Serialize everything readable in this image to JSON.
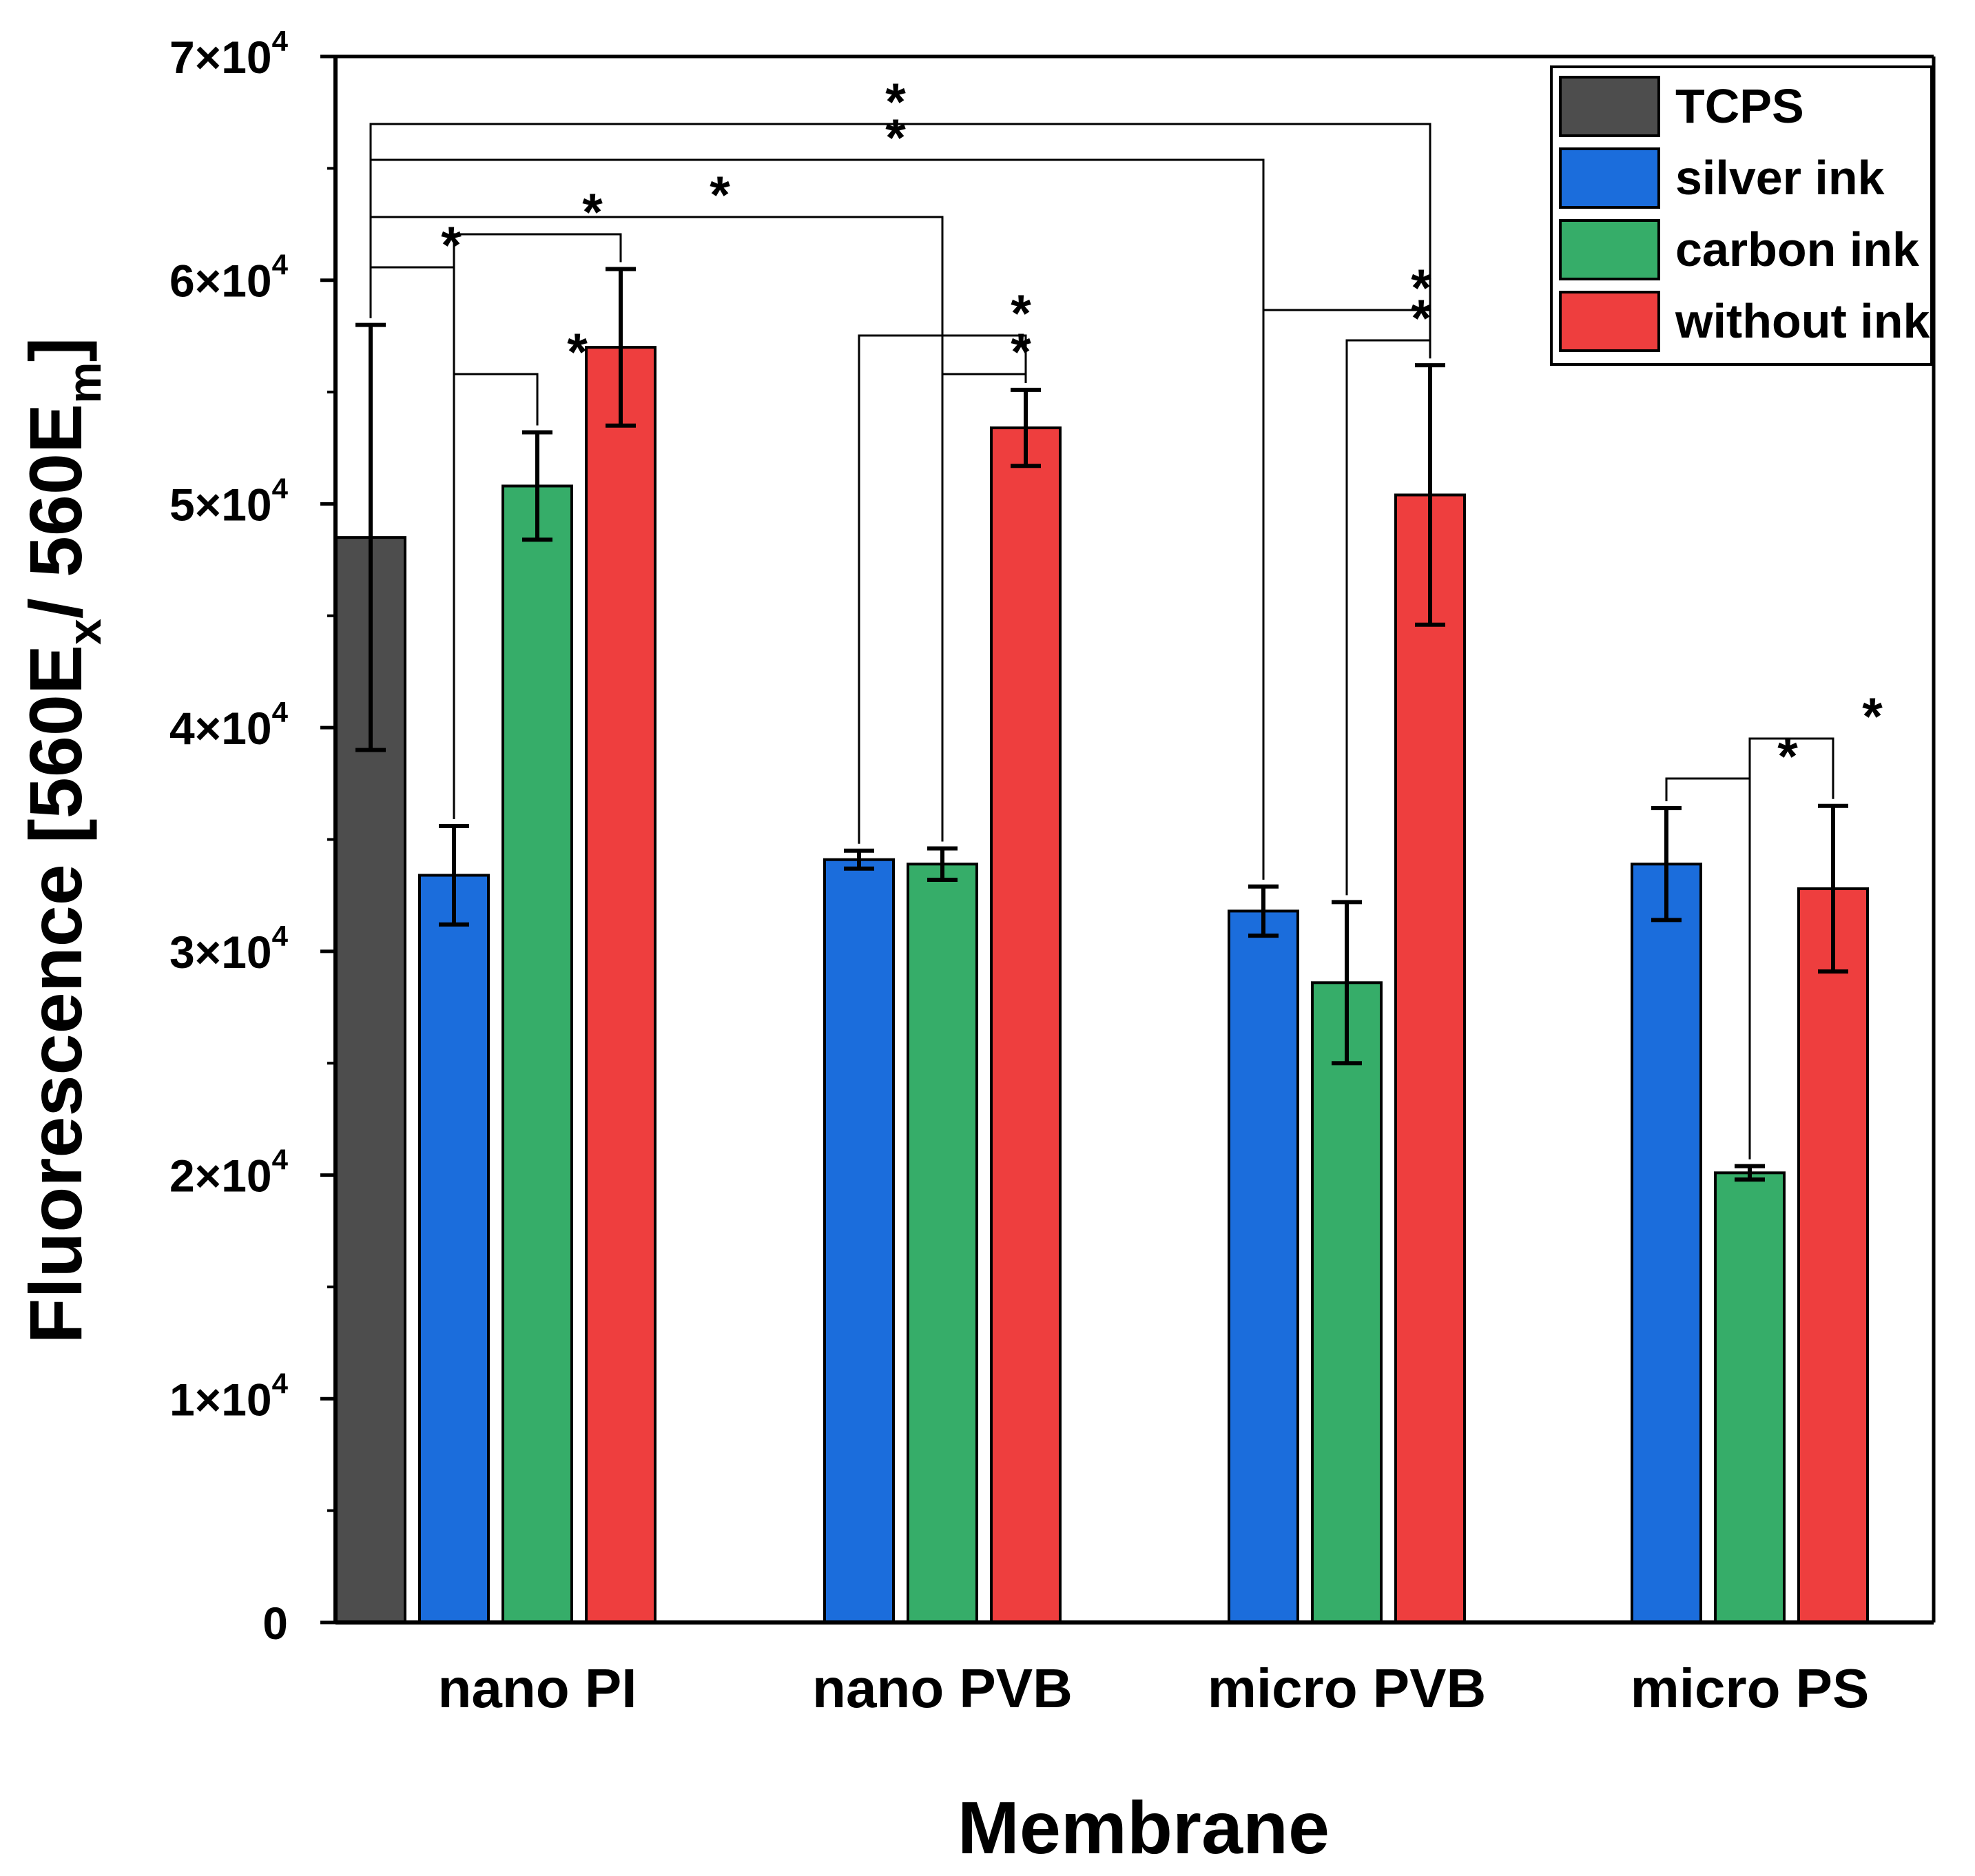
{
  "chart_data": {
    "type": "bar",
    "xlabel": "Membrane",
    "ylabel": {
      "prefix": "Fluorescence [560E",
      "sub1": "x",
      "mid": "/ 560E",
      "sub2": "m",
      "suffix": "]"
    },
    "ylim": [
      0,
      70000
    ],
    "yticks": [
      {
        "value": 0,
        "base": "0",
        "exp": ""
      },
      {
        "value": 10000,
        "base": "1×10",
        "exp": "4"
      },
      {
        "value": 20000,
        "base": "2×10",
        "exp": "4"
      },
      {
        "value": 30000,
        "base": "3×10",
        "exp": "4"
      },
      {
        "value": 40000,
        "base": "4×10",
        "exp": "4"
      },
      {
        "value": 50000,
        "base": "5×10",
        "exp": "4"
      },
      {
        "value": 60000,
        "base": "6×10",
        "exp": "4"
      },
      {
        "value": 70000,
        "base": "7×10",
        "exp": "4"
      }
    ],
    "categories": [
      "nano PI",
      "nano PVB",
      "micro PVB",
      "micro PS"
    ],
    "control": {
      "name": "TCPS",
      "value": 48500,
      "error": 9500,
      "color": "#4d4d4d"
    },
    "series": [
      {
        "name": "silver ink",
        "color": "#1b6ddc",
        "values": [
          33400,
          34100,
          31800,
          33900
        ],
        "errors": [
          2200,
          400,
          1100,
          2500
        ]
      },
      {
        "name": "carbon ink",
        "color": "#36ad69",
        "values": [
          50800,
          33900,
          28600,
          20100
        ],
        "errors": [
          2400,
          700,
          3600,
          300
        ]
      },
      {
        "name": "without ink",
        "color": "#ee3e3e",
        "values": [
          57000,
          53400,
          50400,
          32800
        ],
        "errors": [
          3500,
          1700,
          5800,
          3700
        ]
      }
    ],
    "significance_marker": "*",
    "significance": [
      {
        "from": "TCPS",
        "to": "micro PVB/without ink",
        "label": "*"
      },
      {
        "from": "TCPS",
        "to": "micro PVB/silver ink",
        "label": "*"
      },
      {
        "from": "TCPS",
        "to": "nano PVB/carbon ink",
        "label": "*"
      },
      {
        "from": "TCPS",
        "to": "nano PI/silver ink",
        "label": "*"
      },
      {
        "from": "nano PI/silver ink",
        "to": "nano PI/without ink",
        "label": "*"
      },
      {
        "from": "nano PI/silver ink",
        "to": "nano PI/carbon ink",
        "label": "*"
      },
      {
        "from": "nano PVB/silver ink",
        "to": "nano PVB/without ink",
        "label": "*"
      },
      {
        "from": "nano PVB/carbon ink",
        "to": "nano PVB/without ink",
        "label": "*"
      },
      {
        "from": "micro PVB/silver ink",
        "to": "micro PVB/without ink",
        "label": "*"
      },
      {
        "from": "micro PVB/carbon ink",
        "to": "micro PVB/without ink",
        "label": "*"
      },
      {
        "from": "micro PS/silver ink",
        "to": "micro PS/carbon ink",
        "label": "*"
      },
      {
        "from": "micro PS/carbon ink",
        "to": "micro PS/without ink",
        "label": "*"
      }
    ],
    "legend": {
      "position": "top-right",
      "entries": [
        {
          "label": "TCPS",
          "color": "#4d4d4d"
        },
        {
          "label": "silver ink",
          "color": "#1b6ddc"
        },
        {
          "label": "carbon ink",
          "color": "#36ad69"
        },
        {
          "label": "without ink",
          "color": "#ee3e3e"
        }
      ]
    }
  }
}
